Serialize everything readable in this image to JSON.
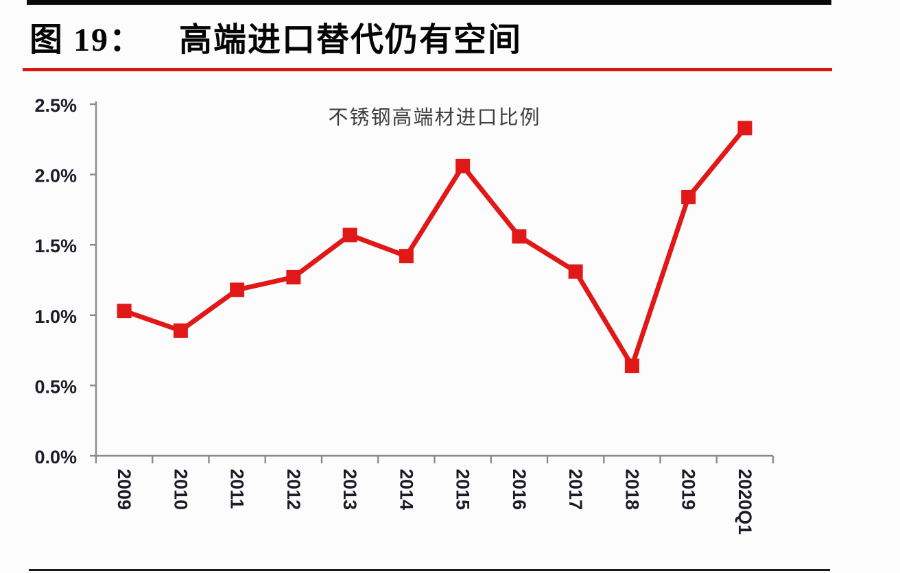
{
  "page": {
    "figure_label": "图 19：",
    "figure_title": "高端进口替代仍有空间"
  },
  "chart_data": {
    "type": "line",
    "title": "不锈钢高端材进口比例",
    "categories": [
      "2009",
      "2010",
      "2011",
      "2012",
      "2013",
      "2014",
      "2015",
      "2016",
      "2017",
      "2018",
      "2019",
      "2020Q1"
    ],
    "values": [
      1.03,
      0.89,
      1.18,
      1.27,
      1.57,
      1.42,
      2.06,
      1.56,
      1.31,
      0.64,
      1.84,
      2.33
    ],
    "value_unit": "%",
    "ylim": [
      0,
      2.5
    ],
    "ytick_labels": [
      "0.0%",
      "0.5%",
      "1.0%",
      "1.5%",
      "2.0%",
      "2.5%"
    ],
    "xlabel": "",
    "ylabel": "",
    "grid": false,
    "legend_position": "none",
    "marker": "square",
    "line_color": "#e01818",
    "marker_color": "#e01818",
    "axis_color": "#8a8a8a",
    "tick_label_color": "#1c1c26",
    "rule_color_red": "#dd1414",
    "rule_color_black": "#0a0a0a"
  }
}
